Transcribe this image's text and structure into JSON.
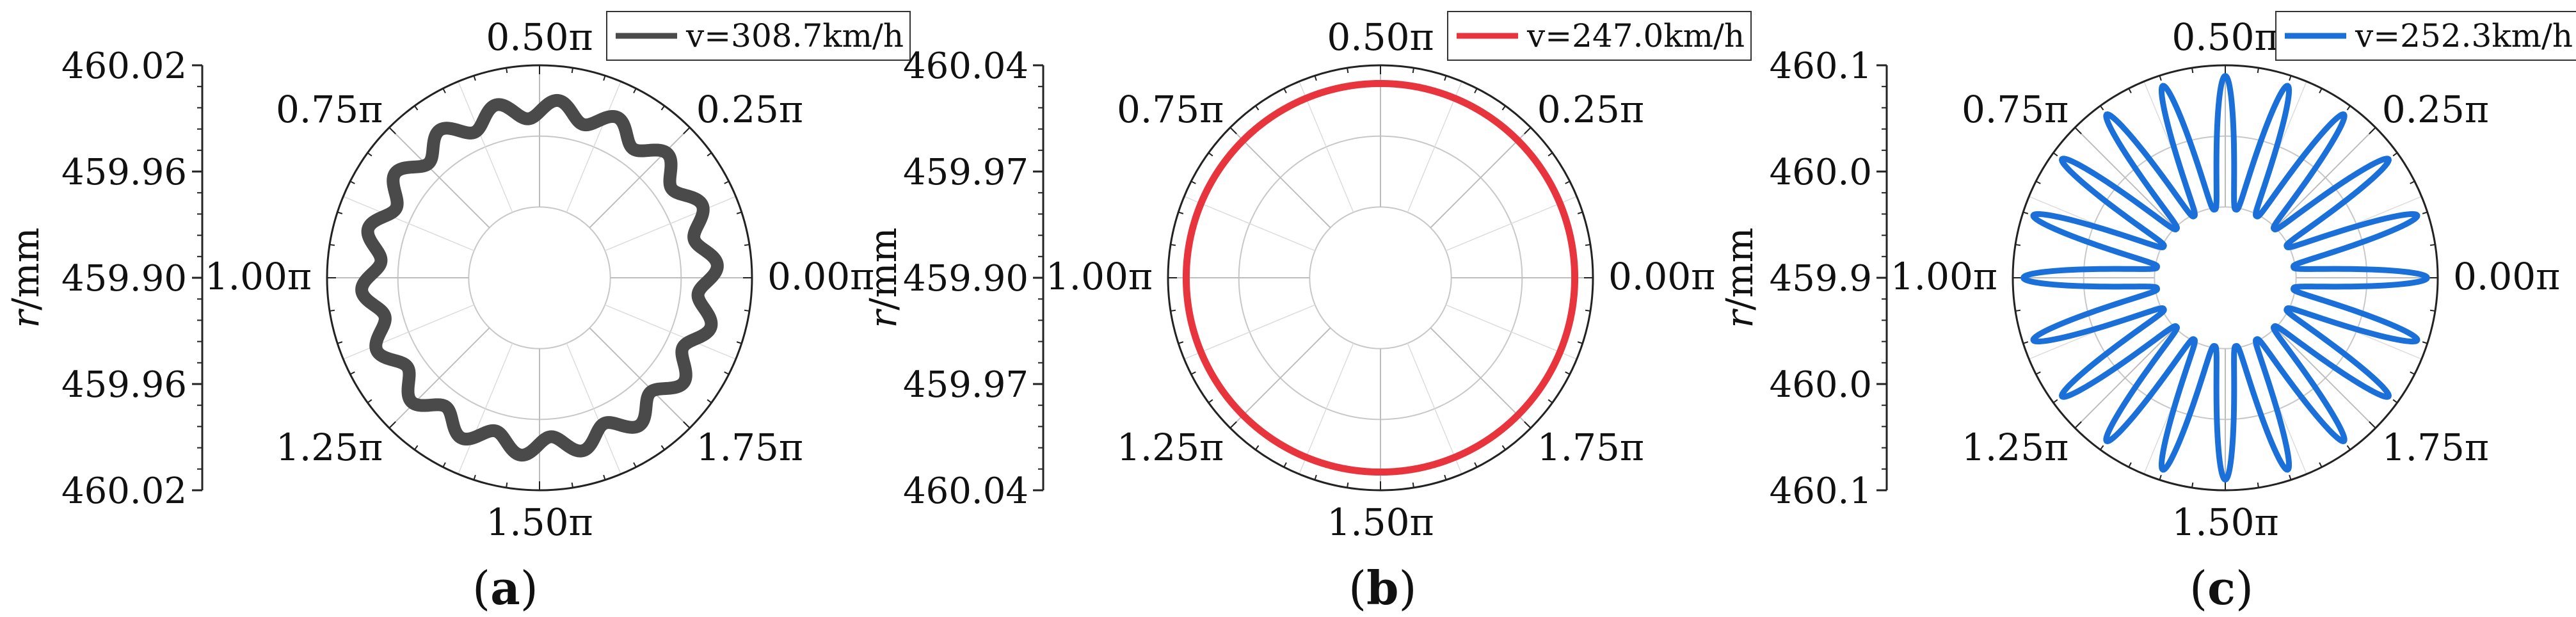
{
  "chart_data": [
    {
      "type": "polar-line",
      "panel_label": "a",
      "ylabel_italic": "r",
      "ylabel_unit": "/mm",
      "radial_tick_labels": [
        "460.02",
        "459.96",
        "459.90",
        "459.96",
        "460.02"
      ],
      "angle_labels": [
        "0.00π",
        "0.25π",
        "0.50π",
        "0.75π",
        "1.00π",
        "1.25π",
        "1.50π",
        "1.75π"
      ],
      "radial_axis": {
        "center": 459.9,
        "edge": 460.02,
        "scale_min": 459.84
      },
      "series": [
        {
          "name": "v=308.7km/h",
          "color": "#4a4a4a",
          "mean_radius": 459.983,
          "amplitude": 0.008,
          "waves": 18
        }
      ]
    },
    {
      "type": "polar-line",
      "panel_label": "b",
      "ylabel_italic": "r",
      "ylabel_unit": "/mm",
      "radial_tick_labels": [
        "460.04",
        "459.97",
        "459.90",
        "459.97",
        "460.04"
      ],
      "angle_labels": [
        "0.00π",
        "0.25π",
        "0.50π",
        "0.75π",
        "1.00π",
        "1.25π",
        "1.50π",
        "1.75π"
      ],
      "radial_axis": {
        "center": 459.9,
        "edge": 460.04,
        "scale_min": 459.83
      },
      "series": [
        {
          "name": "v=247.0km/h",
          "color": "#e8343c",
          "mean_radius": 460.022,
          "amplitude": 0.0,
          "waves": 0
        }
      ]
    },
    {
      "type": "polar-line",
      "panel_label": "c",
      "ylabel_italic": "r",
      "ylabel_unit": "/mm",
      "radial_tick_labels": [
        "460.1",
        "460.0",
        "459.9",
        "460.0",
        "460.1"
      ],
      "angle_labels": [
        "0.00π",
        "0.25π",
        "0.50π",
        "0.75π",
        "1.00π",
        "1.25π",
        "1.50π",
        "1.75π"
      ],
      "radial_axis": {
        "center": 459.9,
        "edge": 460.1,
        "scale_min": 459.7
      },
      "series": [
        {
          "name": "v=252.3km/h",
          "color": "#1a6fd8",
          "min_radius": 459.83,
          "max_radius": 460.08,
          "lobes": 20
        }
      ]
    }
  ]
}
